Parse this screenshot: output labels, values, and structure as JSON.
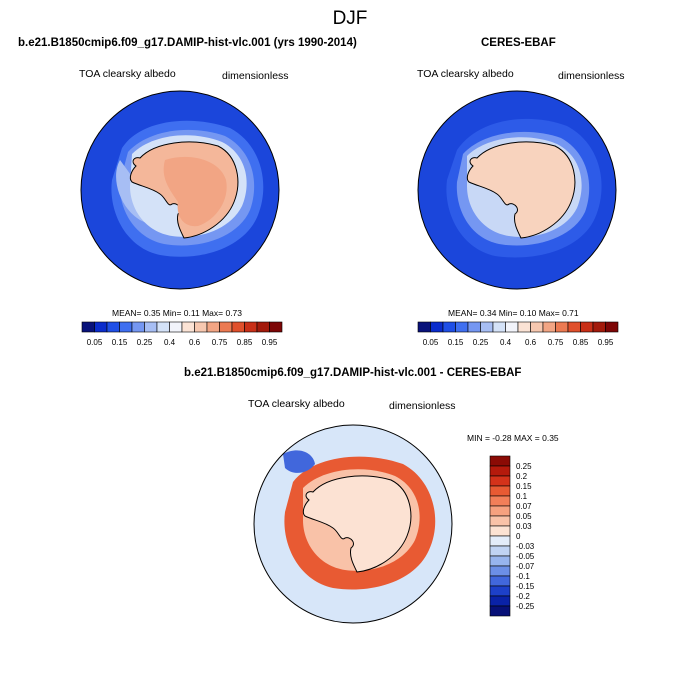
{
  "page": {
    "title": "DJF"
  },
  "colors": {
    "scale": [
      "#08127a",
      "#0a2ccc",
      "#1f4fe6",
      "#3f6ff0",
      "#7597f2",
      "#a7bef4",
      "#d4e2f8",
      "#f2f4fb",
      "#fbe3d5",
      "#f7c8b0",
      "#f2a584",
      "#ec7a52",
      "#e0502c",
      "#c92f17",
      "#a31a0b",
      "#7d0606"
    ],
    "land_model": "#f4b79a",
    "land_obs": "#f8d3be",
    "ocean_ring": "#1b46db",
    "diff_bg": "#d7e6f9"
  },
  "panels": {
    "left": {
      "title": "b.e21.B1850cmip6.f09_g17.DAMIP-hist-vlc.001 (yrs 1990-2014)",
      "variable": "TOA clearsky albedo",
      "units": "dimensionless",
      "stats": "MEAN=  0.35  Min=  0.11  Max=  0.73"
    },
    "right": {
      "title": "CERES-EBAF",
      "variable": "TOA clearsky albedo",
      "units": "dimensionless",
      "stats": "MEAN=  0.34  Min=  0.10  Max=  0.71"
    },
    "diff": {
      "title": "b.e21.B1850cmip6.f09_g17.DAMIP-hist-vlc.001 - CERES-EBAF",
      "variable": "TOA clearsky albedo",
      "units": "dimensionless",
      "stats": "MIN = -0.28 MAX =   0.35"
    }
  },
  "chart_data": [
    {
      "type": "heatmap",
      "title": "b.e21.B1850cmip6.f09_g17.DAMIP-hist-vlc.001 (yrs 1990-2014)",
      "variable": "TOA clearsky albedo",
      "units": "dimensionless",
      "projection": "south-polar stereographic",
      "colorbar_labels": [
        "0.05",
        "0.15",
        "0.25",
        "0.4",
        "0.6",
        "0.75",
        "0.85",
        "0.95"
      ],
      "colorbar_levels": [
        0.05,
        0.1,
        0.15,
        0.2,
        0.25,
        0.3,
        0.4,
        0.5,
        0.6,
        0.7,
        0.75,
        0.8,
        0.85,
        0.9,
        0.95
      ],
      "mean": 0.35,
      "min": 0.11,
      "max": 0.73
    },
    {
      "type": "heatmap",
      "title": "CERES-EBAF",
      "variable": "TOA clearsky albedo",
      "units": "dimensionless",
      "projection": "south-polar stereographic",
      "colorbar_labels": [
        "0.05",
        "0.15",
        "0.25",
        "0.4",
        "0.6",
        "0.75",
        "0.85",
        "0.95"
      ],
      "colorbar_levels": [
        0.05,
        0.1,
        0.15,
        0.2,
        0.25,
        0.3,
        0.4,
        0.5,
        0.6,
        0.7,
        0.75,
        0.8,
        0.85,
        0.9,
        0.95
      ],
      "mean": 0.34,
      "min": 0.1,
      "max": 0.71
    },
    {
      "type": "heatmap",
      "title": "b.e21.B1850cmip6.f09_g17.DAMIP-hist-vlc.001 - CERES-EBAF",
      "variable": "TOA clearsky albedo",
      "units": "dimensionless",
      "projection": "south-polar stereographic",
      "colorbar_labels": [
        "0.25",
        "0.2",
        "0.15",
        "0.1",
        "0.07",
        "0.05",
        "0.03",
        "0",
        "-0.03",
        "-0.05",
        "-0.07",
        "-0.1",
        "-0.15",
        "-0.2",
        "-0.25"
      ],
      "colorbar_colors": [
        "#8b0b05",
        "#b51a0c",
        "#d4321a",
        "#e85a33",
        "#f27f59",
        "#f6a17f",
        "#f9c2a8",
        "#fce2d3",
        "#e3ecfa",
        "#c0d3f4",
        "#97b4ee",
        "#6c8fe6",
        "#4167dc",
        "#1d40c9",
        "#0a22a8",
        "#071078"
      ],
      "min": -0.28,
      "max": 0.35
    }
  ]
}
